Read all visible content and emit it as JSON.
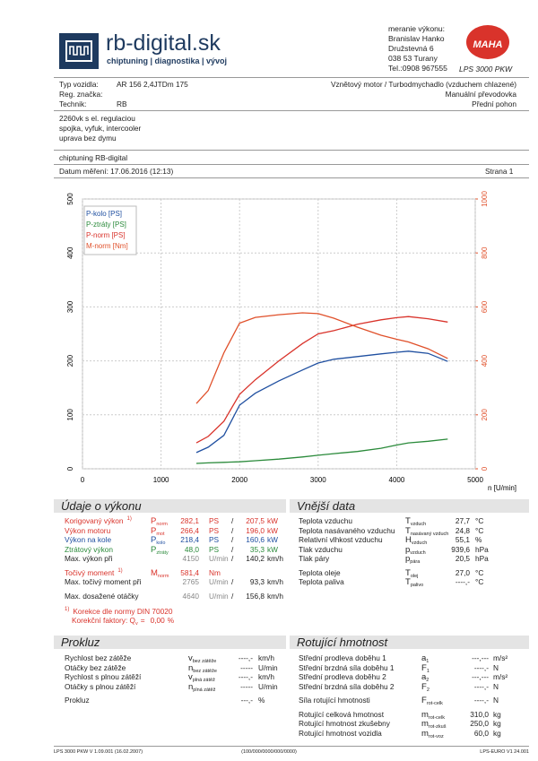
{
  "header": {
    "brand": "rb-digital.sk",
    "tagline": "chiptuning | diagnostika | vývoj",
    "contact": [
      "meranie výkonu:",
      "Branislav Hanko",
      "Družstevná 6",
      "038 53 Turany",
      "Tel.:0908 967555"
    ],
    "maha": "MAHA",
    "model": "LPS 3000 PKW"
  },
  "vehicle": [
    {
      "label": "Typ vozidla:",
      "value": "AR 156 2,4JTDm 175",
      "right": "Vznětový motor / Turbodmychadlo (vzduchem chlazené)"
    },
    {
      "label": "Reg. značka:",
      "right": "Manuální převodovka"
    },
    {
      "label": "Technik:",
      "value": "RB",
      "right": "Přední pohon"
    }
  ],
  "notes": [
    "2260vk s el. regulaciou",
    "spojka, vyfuk, intercooler",
    "uprava bez dymu"
  ],
  "company": "chiptuning RB-digital",
  "date": "Datum měření: 17.06.2016 (12:13)",
  "page": "Strana 1",
  "chart_data": {
    "type": "line",
    "x_label": "n [U/min]",
    "xlim": [
      0,
      5000
    ],
    "xticks": [
      0,
      1000,
      2000,
      3000,
      4000,
      5000
    ],
    "ylim": [
      0,
      500
    ],
    "yticks": [
      0,
      100,
      200,
      300,
      400,
      500
    ],
    "y2lim": [
      0,
      1000
    ],
    "y2ticks": [
      0,
      200,
      400,
      600,
      800,
      1000
    ],
    "y2color": "#e0502a",
    "grid": true,
    "legend": "top-left",
    "x": [
      1450,
      1600,
      1800,
      2000,
      2200,
      2500,
      2800,
      3000,
      3200,
      3500,
      3800,
      4000,
      4150,
      4400,
      4650
    ],
    "series": [
      {
        "name": "P-kolo [PS]",
        "color": "#1f4fa0",
        "values": [
          30,
          40,
          62,
          118,
          140,
          163,
          183,
          196,
          203,
          208,
          213,
          216,
          218,
          214,
          199
        ]
      },
      {
        "name": "P-ztráty [PS]",
        "color": "#2a8a3a",
        "values": [
          10,
          11,
          12,
          13,
          15,
          18,
          22,
          25,
          28,
          32,
          38,
          44,
          48,
          51,
          55
        ]
      },
      {
        "name": "P-norm [PS]",
        "color": "#d9332b",
        "values": [
          48,
          60,
          88,
          138,
          165,
          200,
          232,
          250,
          256,
          268,
          276,
          280,
          282,
          278,
          272
        ]
      },
      {
        "name": "M-norm [Nm]",
        "color": "#e0502a",
        "axis": "y2",
        "values": [
          242,
          290,
          430,
          540,
          561,
          571,
          578,
          575,
          558,
          525,
          495,
          480,
          470,
          445,
          409
        ]
      }
    ]
  },
  "vykon": {
    "title": "Údaje o výkonu",
    "groups": [
      [
        {
          "label": "Korigovaný výkon",
          "note": "1)",
          "sym": "P",
          "sub": "norm",
          "value": "282,1",
          "unit": "PS",
          "sep": "/",
          "value2": "207,5",
          "unit2": "kW",
          "color": "#d9332b"
        },
        {
          "label": "Výkon motoru",
          "sym": "P",
          "sub": "mot",
          "value": "266,4",
          "unit": "PS",
          "sep": "/",
          "value2": "196,0",
          "unit2": "kW",
          "color": "#d9332b"
        },
        {
          "label": "Výkon na kole",
          "sym": "P",
          "sub": "kolo",
          "value": "218,4",
          "unit": "PS",
          "sep": "/",
          "value2": "160,6",
          "unit2": "kW",
          "color": "#1f4fa0"
        },
        {
          "label": "Ztrátový výkon",
          "sym": "P",
          "sub": "ztráty",
          "value": "48,0",
          "unit": "PS",
          "sep": "/",
          "value2": "35,3",
          "unit2": "kW",
          "color": "#2a8a3a"
        },
        {
          "label": "Max. výkon při",
          "value": "4150",
          "unit": "U/min",
          "sep": "/",
          "value2": "140,2",
          "unit2": "km/h"
        }
      ],
      [
        {
          "label": "Točivý moment",
          "note": "1)",
          "sym": "M",
          "sub": "norm",
          "value": "581,4",
          "unit": "Nm",
          "color": "#d9332b"
        },
        {
          "label": "Max. točivý moment při",
          "value": "2765",
          "unit": "U/min",
          "sep": "/",
          "value2": "93,3",
          "unit2": "km/h"
        }
      ],
      [
        {
          "label": "Max. dosažené otáčky",
          "value": "4640",
          "unit": "U/min",
          "sep": "/",
          "value2": "156,8",
          "unit2": "km/h"
        }
      ]
    ],
    "footnote": {
      "mark": "1)",
      "text": "Korekce dle normy DIN 70020",
      "factors": "Korekční faktory: Q",
      "sub": "v",
      "eq": "=",
      "value": "0,00",
      "unit": "%"
    }
  },
  "vnejsi": {
    "title": "Vnější data",
    "groups": [
      [
        {
          "label": "Teplota vzduchu",
          "sym": "T",
          "sub": "vzduch",
          "value": "27,7",
          "unit": "°C"
        },
        {
          "label": "Teplota nasávaného vzduchu",
          "sym": "T",
          "sub": "nasávaný vzduch",
          "value": "24,8",
          "unit": "°C"
        },
        {
          "label": "Relativní vlhkost vzduchu",
          "sym": "H",
          "sub": "vzduch",
          "value": "55,1",
          "unit": "%"
        },
        {
          "label": "Tlak vzduchu",
          "sym": "p",
          "sub": "vzduch",
          "value": "939,6",
          "unit": "hPa"
        },
        {
          "label": "Tlak páry",
          "sym": "p",
          "sub": "pára",
          "value": "20,5",
          "unit": "hPa"
        }
      ],
      [
        {
          "label": "Teplota oleje",
          "sym": "T",
          "sub": "olej",
          "value": "27,0",
          "unit": "°C"
        },
        {
          "label": "Teplota paliva",
          "sym": "T",
          "sub": "palivo",
          "value": "----,-",
          "unit": "°C"
        }
      ]
    ]
  },
  "prokluz": {
    "title": "Prokluz",
    "groups": [
      [
        {
          "label": "Rychlost bez zátěže",
          "sym": "v",
          "sub": "bez zátěže",
          "value": "----,-",
          "unit": "km/h"
        },
        {
          "label": "Otáčky bez zátěže",
          "sym": "n",
          "sub": "bez zátěže",
          "value": "-----",
          "unit": "U/min"
        },
        {
          "label": "Rychlost s plnou zátěží",
          "sym": "v",
          "sub": "plná zátěž",
          "value": "----,-",
          "unit": "km/h"
        },
        {
          "label": "Otáčky s plnou zátěží",
          "sym": "n",
          "sub": "plná zátěž",
          "value": "-----",
          "unit": "U/min"
        }
      ],
      [
        {
          "label": "Prokluz",
          "value": "---,-",
          "unit": "%"
        }
      ]
    ]
  },
  "rotujici": {
    "title": "Rotující hmotnost",
    "groups": [
      [
        {
          "label": "Střední prodleva doběhu 1",
          "sym": "a",
          "sub": "1",
          "value": "---,---",
          "unit": "m/s²"
        },
        {
          "label": "Střední brzdná síla doběhu 1",
          "sym": "F",
          "sub": "1",
          "value": "----,-",
          "unit": "N"
        },
        {
          "label": "Střední prodleva doběhu 2",
          "sym": "a",
          "sub": "2",
          "value": "---,---",
          "unit": "m/s²"
        },
        {
          "label": "Střední brzdná síla doběhu 2",
          "sym": "F",
          "sub": "2",
          "value": "----,-",
          "unit": "N"
        }
      ],
      [
        {
          "label": "Síla rotující hmotnosti",
          "sym": "F",
          "sub": "rot-celk",
          "value": "----,-",
          "unit": "N"
        }
      ],
      [
        {
          "label": "Rotující celková hmotnost",
          "sym": "m",
          "sub": "rot-celk",
          "value": "310,0",
          "unit": "kg"
        },
        {
          "label": "Rotující hmotnost zkušebny",
          "sym": "m",
          "sub": "rot-zkuš",
          "value": "250,0",
          "unit": "kg"
        },
        {
          "label": "Rotující hmotnost vozidla",
          "sym": "m",
          "sub": "rot-voz",
          "value": "60,0",
          "unit": "kg"
        }
      ]
    ]
  },
  "footer": [
    "LPS 3000 PKW V 1.09.001 (16.02.2007)",
    "(100/000/0000/000/0000)",
    "LPS-EURO V1 24.001"
  ]
}
